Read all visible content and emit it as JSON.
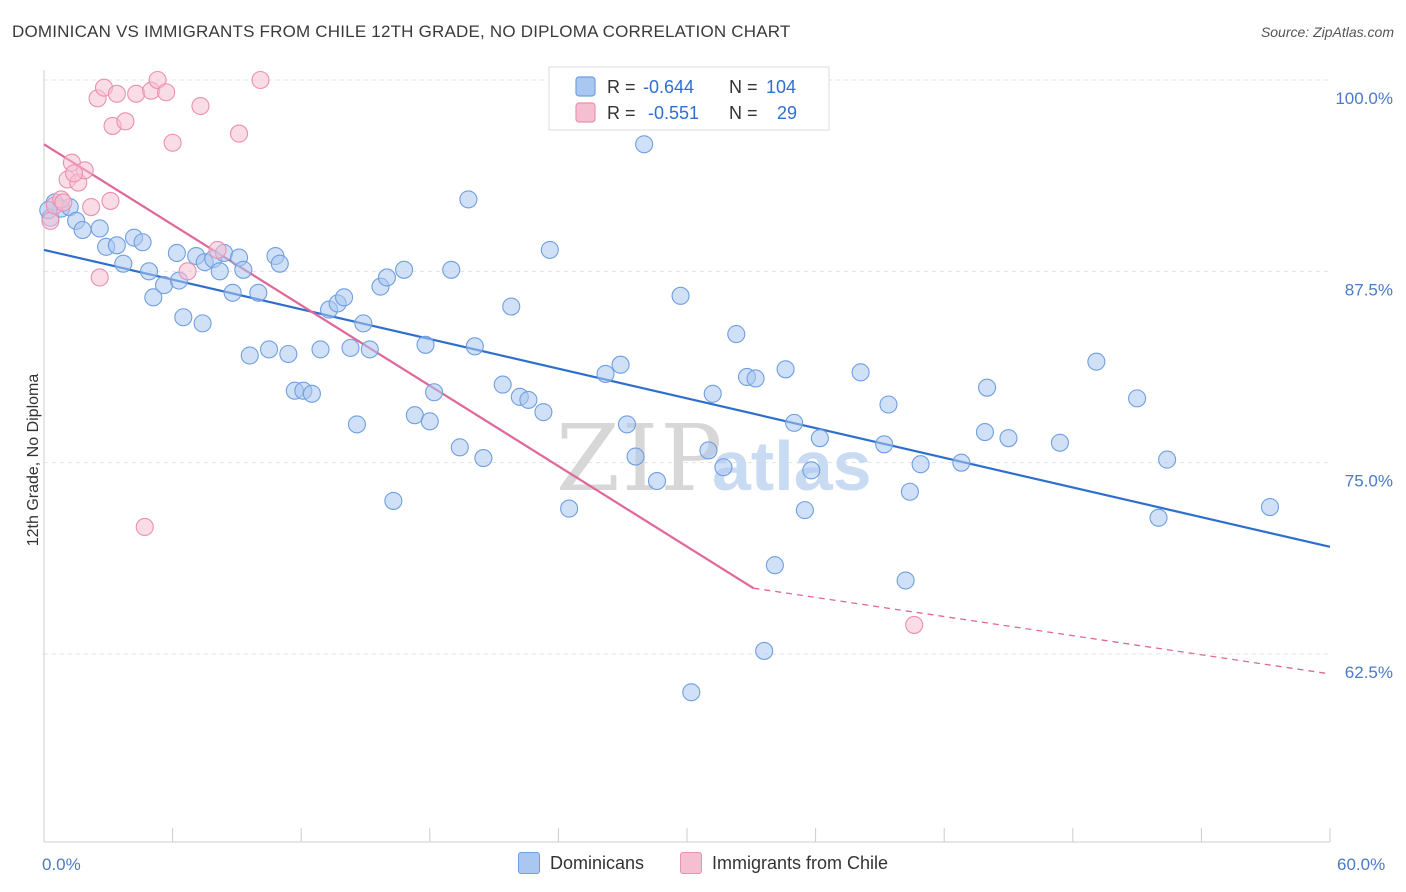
{
  "title": "DOMINICAN VS IMMIGRANTS FROM CHILE 12TH GRADE, NO DIPLOMA CORRELATION CHART",
  "source": "Source: ZipAtlas.com",
  "watermark": {
    "zip": "ZIP",
    "atlas": "atlas"
  },
  "chart_data": {
    "type": "scatter",
    "ylabel": "12th Grade, No Diploma",
    "xlim": [
      0,
      60
    ],
    "ylim": [
      52,
      100.5
    ],
    "x_tick_labels": [
      "0.0%",
      "60.0%"
    ],
    "y_ticks": [
      62.5,
      75.0,
      87.5,
      100.0
    ],
    "y_tick_labels": [
      "62.5%",
      "75.0%",
      "87.5%",
      "100.0%"
    ],
    "grid": true,
    "legend_top": [
      {
        "r_label": "R =",
        "r_value": "-0.644",
        "n_label": "N =",
        "n_value": "104",
        "color": "#6f9fe0"
      },
      {
        "r_label": "R =",
        "r_value": "-0.551",
        "n_label": "N =",
        "n_value": "29",
        "color": "#ec8fb0"
      }
    ],
    "series": [
      {
        "name": "Dominicans",
        "color": "#6f9fe0",
        "fill": "#a9c7f1",
        "line_color": "#2d6fcc",
        "trend": {
          "x0": 0,
          "y0": 88.9,
          "x1": 60,
          "y1": 69.5
        },
        "points": [
          [
            0.3,
            91
          ],
          [
            0.5,
            92
          ],
          [
            0.8,
            91.6
          ],
          [
            1.2,
            91.7
          ],
          [
            1.5,
            90.8
          ],
          [
            1.8,
            90.2
          ],
          [
            2.6,
            90.3
          ],
          [
            2.9,
            89.1
          ],
          [
            3.4,
            89.2
          ],
          [
            3.7,
            88.0
          ],
          [
            4.2,
            89.7
          ],
          [
            4.6,
            89.4
          ],
          [
            4.9,
            87.5
          ],
          [
            5.1,
            85.8
          ],
          [
            5.6,
            86.6
          ],
          [
            6.2,
            88.7
          ],
          [
            6.3,
            86.9
          ],
          [
            6.5,
            84.5
          ],
          [
            7.1,
            88.5
          ],
          [
            7.4,
            84.1
          ],
          [
            7.5,
            88.1
          ],
          [
            7.9,
            88.3
          ],
          [
            8.2,
            87.5
          ],
          [
            8.4,
            88.7
          ],
          [
            8.8,
            86.1
          ],
          [
            9.1,
            88.4
          ],
          [
            9.3,
            87.6
          ],
          [
            9.6,
            82.0
          ],
          [
            10.0,
            86.1
          ],
          [
            10.5,
            82.4
          ],
          [
            10.8,
            88.5
          ],
          [
            11.0,
            88.0
          ],
          [
            11.4,
            82.1
          ],
          [
            11.7,
            79.7
          ],
          [
            12.1,
            79.7
          ],
          [
            12.5,
            79.5
          ],
          [
            12.9,
            82.4
          ],
          [
            13.3,
            85.0
          ],
          [
            13.7,
            85.4
          ],
          [
            14.0,
            85.8
          ],
          [
            14.3,
            82.5
          ],
          [
            14.6,
            77.5
          ],
          [
            14.9,
            84.1
          ],
          [
            15.2,
            82.4
          ],
          [
            15.7,
            86.5
          ],
          [
            16.0,
            87.1
          ],
          [
            16.3,
            72.5
          ],
          [
            16.8,
            87.6
          ],
          [
            17.3,
            78.1
          ],
          [
            17.8,
            82.7
          ],
          [
            18.0,
            77.7
          ],
          [
            18.2,
            79.6
          ],
          [
            19.0,
            87.6
          ],
          [
            19.4,
            76.0
          ],
          [
            19.8,
            92.2
          ],
          [
            20.1,
            82.6
          ],
          [
            20.5,
            75.3
          ],
          [
            21.4,
            80.1
          ],
          [
            21.8,
            85.2
          ],
          [
            22.2,
            79.3
          ],
          [
            22.6,
            79.1
          ],
          [
            23.3,
            78.3
          ],
          [
            23.6,
            88.9
          ],
          [
            24.1,
            100
          ],
          [
            24.5,
            72.0
          ],
          [
            25.3,
            100
          ],
          [
            26.2,
            80.8
          ],
          [
            26.9,
            81.4
          ],
          [
            27.2,
            77.5
          ],
          [
            27.6,
            75.4
          ],
          [
            28.0,
            95.8
          ],
          [
            28.6,
            73.8
          ],
          [
            29.7,
            85.9
          ],
          [
            30.2,
            60.0
          ],
          [
            31.0,
            75.8
          ],
          [
            31.2,
            79.5
          ],
          [
            31.7,
            74.7
          ],
          [
            32.3,
            83.4
          ],
          [
            32.8,
            80.6
          ],
          [
            33.2,
            80.5
          ],
          [
            33.6,
            62.7
          ],
          [
            34.1,
            68.3
          ],
          [
            34.6,
            81.1
          ],
          [
            35.0,
            77.6
          ],
          [
            35.5,
            71.9
          ],
          [
            35.8,
            74.5
          ],
          [
            36.2,
            76.6
          ],
          [
            38.1,
            80.9
          ],
          [
            39.2,
            76.2
          ],
          [
            39.4,
            78.8
          ],
          [
            40.2,
            67.3
          ],
          [
            40.4,
            73.1
          ],
          [
            40.9,
            74.9
          ],
          [
            42.8,
            75.0
          ],
          [
            43.9,
            77.0
          ],
          [
            44.0,
            79.9
          ],
          [
            45.0,
            76.6
          ],
          [
            47.4,
            76.3
          ],
          [
            49.1,
            81.6
          ],
          [
            51.0,
            79.2
          ],
          [
            52.0,
            71.4
          ],
          [
            52.4,
            75.2
          ],
          [
            57.2,
            72.1
          ],
          [
            0.2,
            91.5
          ]
        ]
      },
      {
        "name": "Immigrants from Chile",
        "color": "#ec8fb0",
        "fill": "#f5bfd2",
        "line_color": "#e0679a",
        "trend": {
          "x0": 0,
          "y0": 95.8,
          "x1": 33.1,
          "y1": 66.8
        },
        "trend_dashed": {
          "x0": 33.1,
          "y0": 66.8,
          "x1": 60,
          "y1": 61.2
        },
        "points": [
          [
            0.3,
            90.8
          ],
          [
            0.5,
            91.8
          ],
          [
            0.8,
            92.2
          ],
          [
            1.1,
            93.5
          ],
          [
            1.3,
            94.6
          ],
          [
            1.6,
            93.3
          ],
          [
            1.9,
            94.1
          ],
          [
            2.2,
            91.7
          ],
          [
            2.5,
            98.8
          ],
          [
            2.6,
            87.1
          ],
          [
            2.8,
            99.5
          ],
          [
            3.1,
            92.1
          ],
          [
            3.2,
            97.0
          ],
          [
            3.4,
            99.1
          ],
          [
            3.8,
            97.3
          ],
          [
            4.3,
            99.1
          ],
          [
            4.7,
            70.8
          ],
          [
            5.0,
            99.3
          ],
          [
            5.3,
            100.0
          ],
          [
            5.7,
            99.2
          ],
          [
            6.0,
            95.9
          ],
          [
            6.7,
            87.5
          ],
          [
            7.3,
            98.3
          ],
          [
            8.1,
            88.9
          ],
          [
            9.1,
            96.5
          ],
          [
            10.1,
            100
          ],
          [
            40.6,
            64.4
          ],
          [
            0.9,
            92.0
          ],
          [
            1.4,
            93.9
          ]
        ]
      }
    ]
  }
}
